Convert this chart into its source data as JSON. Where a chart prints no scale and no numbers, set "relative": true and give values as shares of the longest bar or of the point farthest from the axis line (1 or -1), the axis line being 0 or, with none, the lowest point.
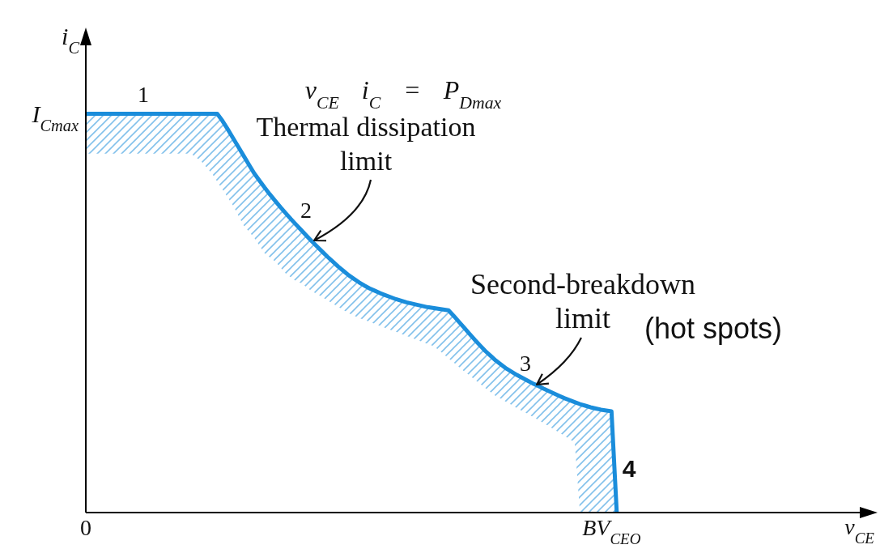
{
  "chart_data": {
    "type": "line",
    "xlabel": "v$_{CE}$",
    "ylabel": "i$_{C}$",
    "relative": true,
    "categories": [
      "0",
      null,
      null,
      null,
      null,
      null,
      null,
      null,
      null,
      null,
      null,
      null,
      null,
      null,
      null,
      null,
      null,
      null,
      null,
      null,
      null,
      null,
      null,
      null,
      null,
      null,
      null,
      null,
      null,
      null,
      null,
      null,
      null,
      null,
      null,
      null,
      null,
      null,
      null,
      null,
      null,
      null,
      null,
      null,
      null,
      null,
      null,
      null,
      null,
      null,
      null,
      null,
      null,
      null,
      null,
      null,
      null,
      null,
      null,
      null,
      null,
      null,
      null,
      null,
      null,
      null,
      null,
      null,
      null,
      null,
      null,
      null,
      null,
      null,
      null,
      null,
      null,
      null,
      null,
      null,
      null,
      null,
      null,
      null,
      null,
      null,
      null,
      null,
      null,
      null,
      null,
      null,
      null,
      null,
      null,
      null,
      null,
      null,
      null,
      null,
      "BV$_{CEO}$",
      null,
      null,
      null,
      null,
      null,
      null,
      null,
      null,
      null,
      null,
      null,
      null,
      null,
      null,
      null,
      null,
      null,
      null,
      null,
      null,
      null,
      null,
      null,
      null,
      null,
      null,
      null,
      null,
      null,
      null,
      null,
      null,
      null,
      null,
      null,
      null,
      null,
      null,
      null,
      null,
      null,
      null,
      null,
      null,
      null,
      null,
      null,
      null,
      null,
      null
    ],
    "series": [
      {
        "color": "#1a8ddb",
        "values": [
          1,
          1,
          1,
          1,
          1,
          1,
          1,
          1,
          1,
          1,
          1,
          1,
          1,
          1,
          1,
          1,
          1,
          1,
          1,
          1,
          1,
          1,
          1,
          1,
          1,
          1,
          0.982,
          0.961,
          0.939,
          0.917,
          0.895,
          0.873,
          0.851,
          0.833,
          0.815,
          0.798,
          0.782,
          0.766,
          0.751,
          0.736,
          0.722,
          0.708,
          0.694,
          0.68,
          0.667,
          0.654,
          0.641,
          0.629,
          0.617,
          0.606,
          0.595,
          0.586,
          0.577,
          0.569,
          0.562,
          0.556,
          0.55,
          0.545,
          0.54,
          0.535,
          0.531,
          0.527,
          0.524,
          0.521,
          0.518,
          0.515,
          0.513,
          0.511,
          0.509,
          0.507,
          0.493,
          0.478,
          0.463,
          0.448,
          0.433,
          0.419,
          0.405,
          0.393,
          0.381,
          0.371,
          0.361,
          0.353,
          0.345,
          0.338,
          0.331,
          0.324,
          0.318,
          0.311,
          0.305,
          0.299,
          0.293,
          0.287,
          0.282,
          0.277,
          0.272,
          0.268,
          0.264,
          0.261,
          0.258,
          0.256,
          0.254,
          0,
          null,
          null,
          null,
          null,
          null,
          null,
          null,
          null,
          null,
          null,
          null,
          null,
          null,
          null,
          null,
          null,
          null,
          null,
          null,
          null,
          null,
          null,
          null,
          null,
          null,
          null,
          null,
          null,
          null,
          null,
          null,
          null,
          null,
          null,
          null,
          null,
          null,
          null,
          null,
          null,
          null,
          null,
          null,
          null,
          null,
          null,
          null,
          null,
          null
        ],
        "lower": [
          0.9,
          0.9,
          0.9,
          0.9,
          0.9,
          0.9,
          0.9,
          0.9,
          0.9,
          0.9,
          0.9,
          0.9,
          0.9,
          0.9,
          0.9,
          0.9,
          0.9,
          0.9,
          0.9,
          0.9,
          0.9,
          0.89,
          0.88,
          0.865,
          0.85,
          0.83,
          0.81,
          0.79,
          0.77,
          0.745,
          0.72,
          0.705,
          0.69,
          0.67,
          0.65,
          0.64,
          0.63,
          0.615,
          0.6,
          0.59,
          0.58,
          0.575,
          0.565,
          0.555,
          0.548,
          0.54,
          0.532,
          0.524,
          0.516,
          0.508,
          0.5,
          0.494,
          0.488,
          0.483,
          0.478,
          0.473,
          0.468,
          0.463,
          0.458,
          0.453,
          0.448,
          0.443,
          0.438,
          0.433,
          0.428,
          0.423,
          0.418,
          0.409,
          0.398,
          0.387,
          0.376,
          0.365,
          0.354,
          0.344,
          0.333,
          0.323,
          0.312,
          0.302,
          0.292,
          0.285,
          0.277,
          0.27,
          0.262,
          0.255,
          0.248,
          0.24,
          0.233,
          0.225,
          0.217,
          0.209,
          0.201,
          0.193,
          0.184,
          0.176,
          0,
          0,
          0,
          0,
          0,
          0,
          0,
          0,
          null,
          null,
          null,
          null,
          null,
          null,
          null,
          null,
          null,
          null,
          null,
          null,
          null,
          null,
          null,
          null,
          null,
          null,
          null,
          null,
          null,
          null,
          null,
          null,
          null,
          null,
          null,
          null,
          null,
          null,
          null,
          null,
          null,
          null,
          null,
          null,
          null,
          null,
          null,
          null,
          null,
          null,
          null,
          null,
          null,
          null,
          null,
          null,
          null
        ],
        "upper": [
          1,
          1,
          1,
          1,
          1,
          1,
          1,
          1,
          1,
          1,
          1,
          1,
          1,
          1,
          1,
          1,
          1,
          1,
          1,
          1,
          1,
          1,
          1,
          1,
          1,
          1,
          0.982,
          0.961,
          0.939,
          0.917,
          0.895,
          0.873,
          0.851,
          0.833,
          0.815,
          0.798,
          0.782,
          0.766,
          0.751,
          0.736,
          0.722,
          0.708,
          0.694,
          0.68,
          0.667,
          0.654,
          0.641,
          0.629,
          0.617,
          0.606,
          0.595,
          0.586,
          0.577,
          0.569,
          0.562,
          0.556,
          0.55,
          0.545,
          0.54,
          0.535,
          0.531,
          0.527,
          0.524,
          0.521,
          0.518,
          0.515,
          0.513,
          0.511,
          0.509,
          0.507,
          0.493,
          0.478,
          0.463,
          0.448,
          0.433,
          0.419,
          0.405,
          0.393,
          0.381,
          0.371,
          0.361,
          0.353,
          0.345,
          0.338,
          0.331,
          0.324,
          0.318,
          0.311,
          0.305,
          0.299,
          0.293,
          0.287,
          0.282,
          0.277,
          0.272,
          0.268,
          0.264,
          0.261,
          0.258,
          0.256,
          0.254,
          0,
          null,
          null,
          null,
          null,
          null,
          null,
          null,
          null,
          null,
          null,
          null,
          null,
          null,
          null,
          null,
          null,
          null,
          null,
          null,
          null,
          null,
          null,
          null,
          null,
          null,
          null,
          null,
          null,
          null,
          null,
          null,
          null,
          null,
          null,
          null,
          null,
          null,
          null,
          null,
          null,
          null,
          null,
          null,
          null,
          null,
          null,
          null,
          null,
          null
        ]
      }
    ],
    "annotations": [
      "1",
      "v$_{CE}$ i$_{C}$ = P$_{Dmax}$",
      "Thermal dissipation\nlimit",
      "2",
      "Second-breakdown\nlimit",
      "(hot spots)",
      "3",
      "4",
      "I$_{Cmax}$"
    ]
  }
}
